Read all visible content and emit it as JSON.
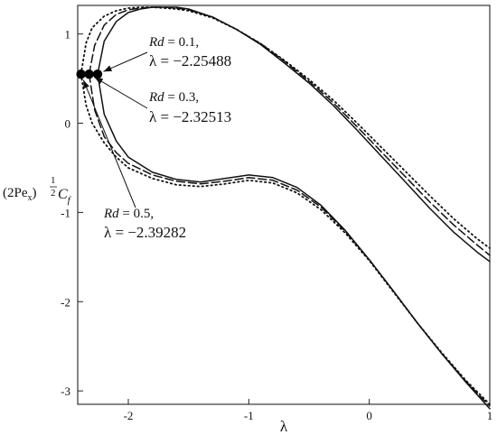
{
  "chart_data": {
    "type": "line",
    "title": "",
    "xlabel": "λ",
    "ylabel": {
      "base": "(2Pe",
      "sub": "x",
      "close": ")",
      "exp_num": "1",
      "exp_den": "2",
      "coef": "C",
      "coef_sub": "f"
    },
    "xlim": [
      -2.42,
      1.0
    ],
    "ylim": [
      -3.15,
      1.32
    ],
    "grid": false,
    "legend": "none",
    "x_ticks": [
      -2,
      -1,
      0,
      1
    ],
    "x_tick_labels": [
      "-2",
      "-1",
      "0",
      "1"
    ],
    "y_ticks": [
      1,
      0,
      -1,
      -2,
      -3
    ],
    "y_tick_labels": [
      "1",
      "0",
      "-1",
      "-2",
      "-3"
    ],
    "colors": {
      "line": "#111111",
      "marker": "#000000"
    },
    "series": [
      {
        "style": "solid",
        "upper": {
          "x": [
            -2.25488,
            -2.2,
            -2.1,
            -2.0,
            -1.9,
            -1.8,
            -1.7,
            -1.6,
            -1.5,
            -1.3,
            -1.1,
            -0.9,
            -0.7,
            -0.5,
            -0.3,
            -0.1,
            0.1,
            0.3,
            0.5,
            0.7,
            0.9,
            1.0
          ],
          "y": [
            0.55,
            0.92,
            1.14,
            1.24,
            1.28,
            1.3,
            1.3,
            1.3,
            1.28,
            1.19,
            1.05,
            0.88,
            0.67,
            0.45,
            0.2,
            -0.08,
            -0.37,
            -0.66,
            -0.95,
            -1.22,
            -1.45,
            -1.55
          ]
        },
        "lower": {
          "x": [
            -2.25488,
            -2.2,
            -2.1,
            -2.0,
            -1.8,
            -1.6,
            -1.4,
            -1.2,
            -1.0,
            -0.8,
            -0.6,
            -0.4,
            -0.2,
            0.0,
            0.2,
            0.4,
            0.6,
            0.8,
            1.0
          ],
          "y": [
            0.55,
            0.1,
            -0.2,
            -0.38,
            -0.55,
            -0.63,
            -0.66,
            -0.62,
            -0.58,
            -0.61,
            -0.72,
            -0.92,
            -1.2,
            -1.53,
            -1.88,
            -2.24,
            -2.58,
            -2.9,
            -3.2
          ]
        }
      },
      {
        "style": "dash",
        "upper": {
          "x": [
            -2.32513,
            -2.28,
            -2.2,
            -2.1,
            -2.0,
            -1.9,
            -1.8,
            -1.7,
            -1.6,
            -1.5,
            -1.3,
            -1.1,
            -0.9,
            -0.7,
            -0.5,
            -0.3,
            -0.1,
            0.1,
            0.3,
            0.5,
            0.7,
            0.9,
            1.0
          ],
          "y": [
            0.55,
            0.87,
            1.1,
            1.22,
            1.27,
            1.29,
            1.3,
            1.3,
            1.29,
            1.27,
            1.19,
            1.05,
            0.89,
            0.69,
            0.47,
            0.23,
            -0.04,
            -0.32,
            -0.6,
            -0.88,
            -1.14,
            -1.37,
            -1.48
          ]
        },
        "lower": {
          "x": [
            -2.32513,
            -2.28,
            -2.2,
            -2.1,
            -2.0,
            -1.8,
            -1.6,
            -1.4,
            -1.2,
            -1.0,
            -0.8,
            -0.6,
            -0.4,
            -0.2,
            0.0,
            0.2,
            0.4,
            0.6,
            0.8,
            1.0
          ],
          "y": [
            0.55,
            0.15,
            -0.15,
            -0.33,
            -0.45,
            -0.58,
            -0.65,
            -0.68,
            -0.65,
            -0.61,
            -0.64,
            -0.75,
            -0.94,
            -1.21,
            -1.53,
            -1.88,
            -2.24,
            -2.58,
            -2.89,
            -3.17
          ]
        }
      },
      {
        "style": "dot",
        "upper": {
          "x": [
            -2.39282,
            -2.35,
            -2.3,
            -2.2,
            -2.1,
            -2.0,
            -1.9,
            -1.8,
            -1.7,
            -1.6,
            -1.5,
            -1.3,
            -1.1,
            -0.9,
            -0.7,
            -0.5,
            -0.3,
            -0.1,
            0.1,
            0.3,
            0.5,
            0.7,
            0.9,
            1.0
          ],
          "y": [
            0.55,
            0.9,
            1.07,
            1.2,
            1.26,
            1.29,
            1.3,
            1.3,
            1.29,
            1.28,
            1.26,
            1.18,
            1.05,
            0.89,
            0.7,
            0.49,
            0.26,
            0.0,
            -0.27,
            -0.54,
            -0.81,
            -1.07,
            -1.3,
            -1.4
          ]
        },
        "lower": {
          "x": [
            -2.39282,
            -2.35,
            -2.3,
            -2.2,
            -2.1,
            -2.0,
            -1.8,
            -1.6,
            -1.4,
            -1.2,
            -1.0,
            -0.8,
            -0.6,
            -0.4,
            -0.2,
            0.0,
            0.2,
            0.4,
            0.6,
            0.8,
            1.0
          ],
          "y": [
            0.55,
            0.2,
            0.0,
            -0.22,
            -0.38,
            -0.5,
            -0.62,
            -0.69,
            -0.71,
            -0.68,
            -0.64,
            -0.67,
            -0.78,
            -0.97,
            -1.23,
            -1.54,
            -1.89,
            -2.24,
            -2.57,
            -2.88,
            -3.15
          ]
        }
      }
    ],
    "annotations": [
      {
        "rd_label": "Rd",
        "rd_value": " = 0.1,",
        "lambda_text": "λ = −2.25488",
        "point": [
          -2.25488,
          0.55
        ]
      },
      {
        "rd_label": "Rd",
        "rd_value": " = 0.3,",
        "lambda_text": "λ = −2.32513",
        "point": [
          -2.32513,
          0.55
        ]
      },
      {
        "rd_label": "Rd",
        "rd_value": " = 0.5,",
        "lambda_text": "λ = −2.39282",
        "point": [
          -2.39282,
          0.55
        ]
      }
    ]
  }
}
